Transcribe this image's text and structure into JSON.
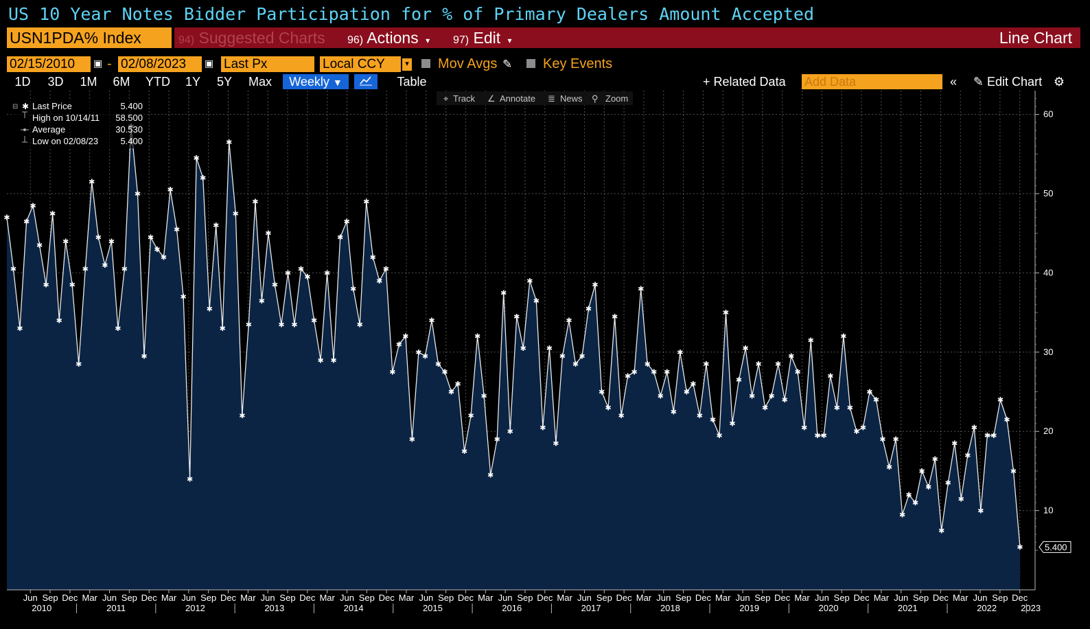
{
  "header": {
    "title": "US 10 Year Notes Bidder Participation for % of Primary Dealers Amount Accepted"
  },
  "toolbar1": {
    "ticker": "USN1PDA% Index",
    "suggested_num": "94)",
    "suggested_label": "Suggested Charts",
    "actions_num": "96)",
    "actions_label": "Actions",
    "edit_num": "97)",
    "edit_label": "Edit",
    "chart_kind": "Line Chart"
  },
  "toolbar2": {
    "start_date": "02/15/2010",
    "date_separator": "-",
    "end_date": "02/08/2023",
    "price_field": "Last Px",
    "currency": "Local CCY",
    "mov_avgs": "Mov Avgs",
    "key_events": "Key Events"
  },
  "toolbar3": {
    "periods": [
      "1D",
      "3D",
      "1M",
      "6M",
      "YTD",
      "1Y",
      "5Y",
      "Max"
    ],
    "frequency": "Weekly",
    "table": "Table",
    "related_data": "+ Related Data",
    "add_data_placeholder": "Add Data",
    "edit_chart": "Edit Chart"
  },
  "chart_tools": {
    "track": "Track",
    "annotate": "Annotate",
    "news": "News",
    "zoom": "Zoom"
  },
  "legend": {
    "last_price_label": "Last Price",
    "last_price_value": "5.400",
    "high_label": "High on 10/14/11",
    "high_value": "58.500",
    "average_label": "Average",
    "average_value": "30.530",
    "low_label": "Low on 02/08/23",
    "low_value": "5.400"
  },
  "colors": {
    "background": "#000000",
    "area_fill": "#0b2444",
    "line": "#ffffff",
    "title": "#5fd3f5",
    "bloomberg_orange": "#f5a21f",
    "bloomberg_red": "#8a0e1d",
    "button_blue": "#1565d8"
  },
  "chart_data": {
    "type": "area",
    "title": "US 10 Year Notes Bidder Participation for % of Primary Dealers Amount Accepted",
    "xlabel": "",
    "ylabel": "",
    "ylim": [
      0,
      63
    ],
    "yticks": [
      10,
      20,
      30,
      40,
      50,
      60
    ],
    "grid": true,
    "last_value_label": "5.400",
    "x_month_labels": [
      "Jun",
      "Sep",
      "Dec",
      "Mar",
      "Jun",
      "Sep",
      "Dec",
      "Mar",
      "Jun",
      "Sep",
      "Dec",
      "Mar",
      "Jun",
      "Sep",
      "Dec",
      "Mar",
      "Jun",
      "Sep",
      "Dec",
      "Mar",
      "Jun",
      "Sep",
      "Dec",
      "Mar",
      "Jun",
      "Sep",
      "Dec",
      "Mar",
      "Jun",
      "Sep",
      "Dec",
      "Mar",
      "Jun",
      "Sep",
      "Dec",
      "Mar",
      "Jun",
      "Sep",
      "Dec",
      "Mar",
      "Jun",
      "Sep",
      "Dec",
      "Mar",
      "Jun",
      "Sep",
      "Dec",
      "Mar",
      "Jun",
      "Sep",
      "Dec"
    ],
    "x_year_labels": [
      "2010",
      "2011",
      "2012",
      "2013",
      "2014",
      "2015",
      "2016",
      "2017",
      "2018",
      "2019",
      "2020",
      "2021",
      "2022",
      "2023"
    ],
    "x_start": 2010.12,
    "x_end": 2023.11,
    "values": [
      47.0,
      40.5,
      33.0,
      46.5,
      48.5,
      43.5,
      38.5,
      47.5,
      34.0,
      44.0,
      38.5,
      28.5,
      40.5,
      51.5,
      44.5,
      41.0,
      44.0,
      33.0,
      40.5,
      58.5,
      50.0,
      29.5,
      44.5,
      43.0,
      42.0,
      50.5,
      45.5,
      37.0,
      14.0,
      54.5,
      52.0,
      35.5,
      46.0,
      33.0,
      56.5,
      47.5,
      22.0,
      33.5,
      49.0,
      36.5,
      45.0,
      38.5,
      33.5,
      40.0,
      33.5,
      40.5,
      39.5,
      34.0,
      29.0,
      40.0,
      29.0,
      44.5,
      46.5,
      38.0,
      33.5,
      49.0,
      42.0,
      39.0,
      40.5,
      27.5,
      31.0,
      32.0,
      19.0,
      30.0,
      29.5,
      34.0,
      28.5,
      27.5,
      25.0,
      26.0,
      17.5,
      22.0,
      32.0,
      24.5,
      14.5,
      19.0,
      37.5,
      20.0,
      34.5,
      30.5,
      39.0,
      36.5,
      20.5,
      30.5,
      18.5,
      29.5,
      34.0,
      28.5,
      29.5,
      35.5,
      38.5,
      25.0,
      23.0,
      34.5,
      22.0,
      27.0,
      27.5,
      38.0,
      28.5,
      27.5,
      24.5,
      27.5,
      22.5,
      30.0,
      25.0,
      26.0,
      22.0,
      28.5,
      21.5,
      19.5,
      35.0,
      21.0,
      26.5,
      30.5,
      24.5,
      28.5,
      23.0,
      24.5,
      28.5,
      24.0,
      29.5,
      27.5,
      20.5,
      31.5,
      19.5,
      19.5,
      27.0,
      23.0,
      32.0,
      23.0,
      20.0,
      20.5,
      25.0,
      24.0,
      19.0,
      15.5,
      19.0,
      9.5,
      12.0,
      11.0,
      15.0,
      13.0,
      16.5,
      7.5,
      13.5,
      18.5,
      11.5,
      17.0,
      20.5,
      10.0,
      19.5,
      19.5,
      24.0,
      21.5,
      15.0,
      5.4
    ]
  }
}
